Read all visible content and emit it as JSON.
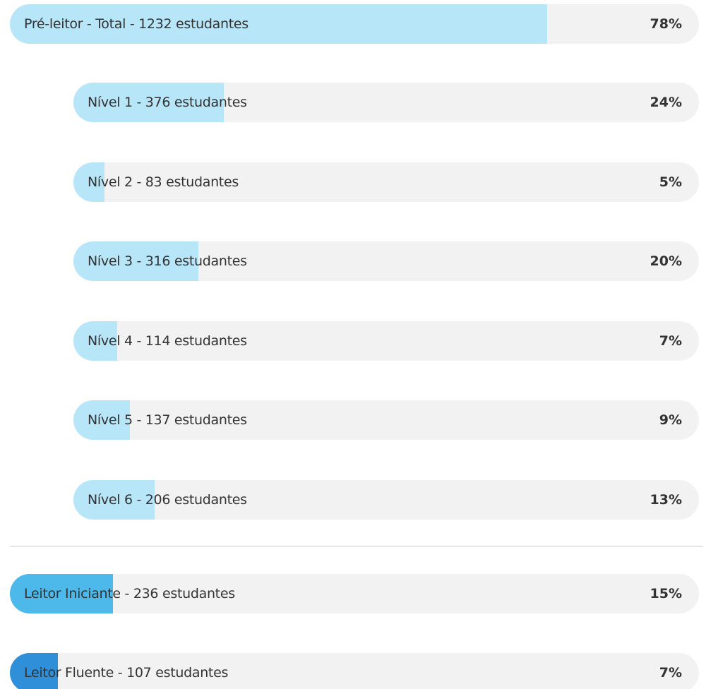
{
  "pre_leitor": {
    "total": {
      "label": "Pré-leitor - Total - 1232 estudantes",
      "value": 78,
      "value_label": "78%",
      "color": "#b8e6f9"
    },
    "levels": [
      {
        "label": "Nível 1 - 376 estudantes",
        "value": 24,
        "value_label": "24%",
        "color": "#b8e6f9"
      },
      {
        "label": "Nível 2 - 83 estudantes",
        "value": 5,
        "value_label": "5%",
        "color": "#b8e6f9"
      },
      {
        "label": "Nível 3 - 316 estudantes",
        "value": 20,
        "value_label": "20%",
        "color": "#b8e6f9"
      },
      {
        "label": "Nível 4 - 114 estudantes",
        "value": 7,
        "value_label": "7%",
        "color": "#b8e6f9"
      },
      {
        "label": "Nível 5 - 137 estudantes",
        "value": 9,
        "value_label": "9%",
        "color": "#b8e6f9"
      },
      {
        "label": "Nível 6 - 206 estudantes",
        "value": 13,
        "value_label": "13%",
        "color": "#b8e6f9"
      }
    ]
  },
  "others": [
    {
      "label": "Leitor Iniciante - 236 estudantes",
      "value": 15,
      "value_label": "15%",
      "color": "#4cb9ea"
    },
    {
      "label": "Leitor Fluente - 107 estudantes",
      "value": 7,
      "value_label": "7%",
      "color": "#2f8fd9"
    }
  ]
}
